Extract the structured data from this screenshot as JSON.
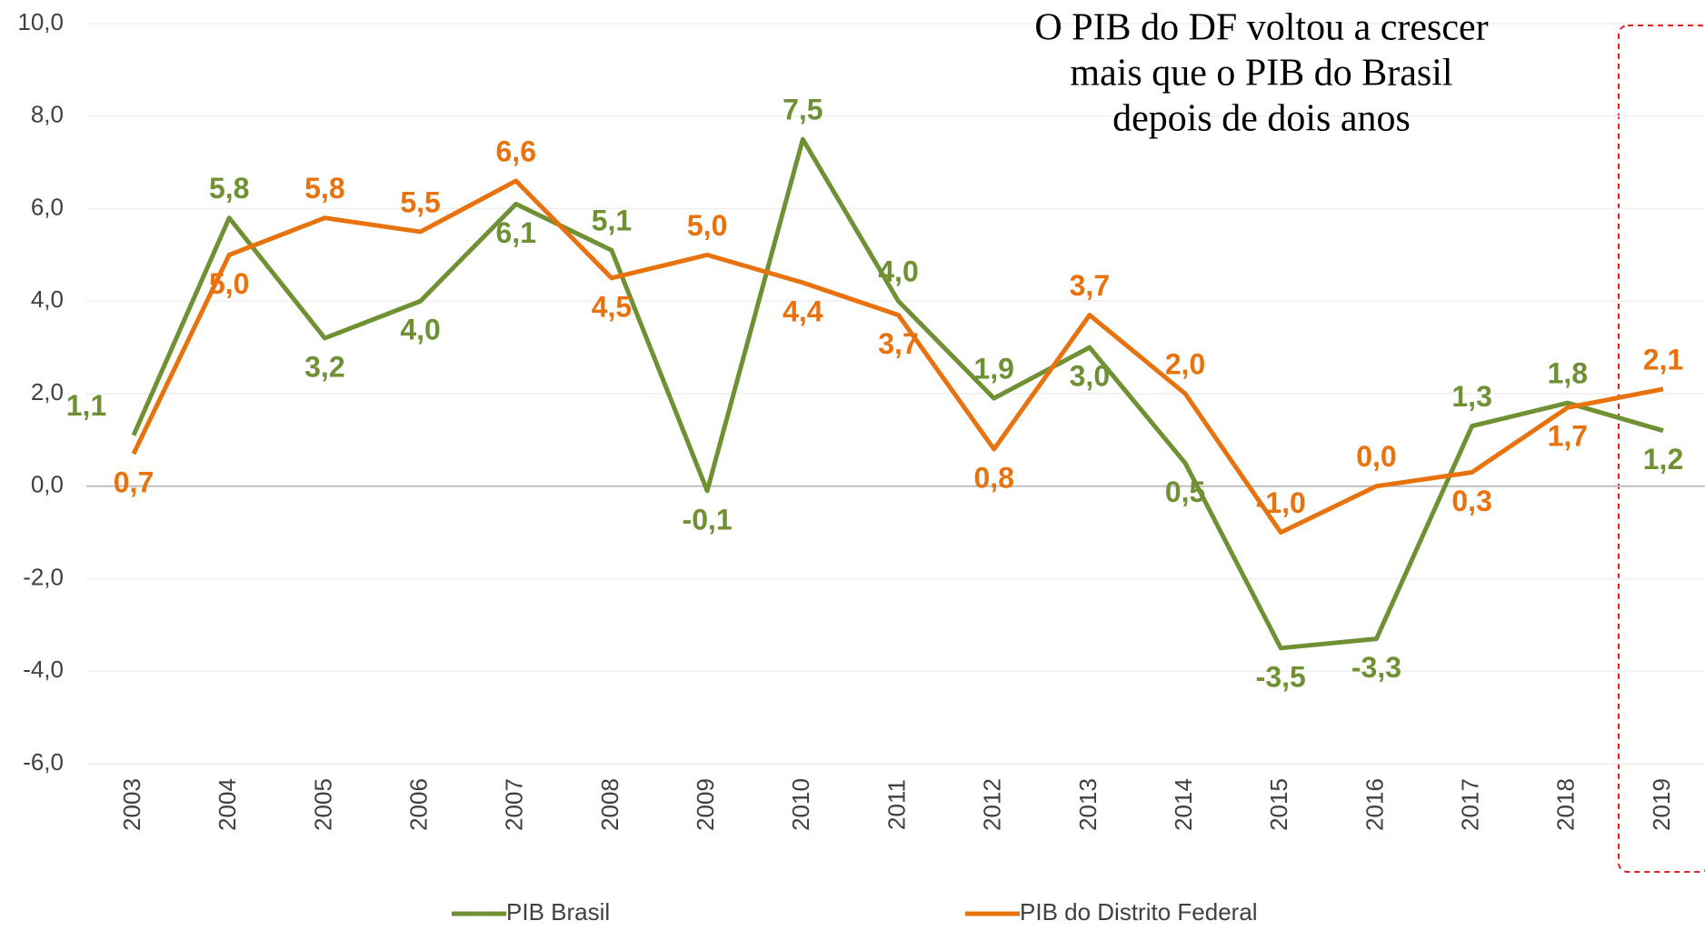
{
  "chart_data": {
    "type": "line",
    "title": [
      "O PIB do DF voltou a crescer",
      "mais que o PIB do Brasil",
      "depois de dois anos"
    ],
    "categories": [
      "2003",
      "2004",
      "2005",
      "2006",
      "2007",
      "2008",
      "2009",
      "2010",
      "2011",
      "2012",
      "2013",
      "2014",
      "2015",
      "2016",
      "2017",
      "2018",
      "2019"
    ],
    "series": [
      {
        "name": "PIB Brasil",
        "color": "#6f9134",
        "values": [
          1.1,
          5.8,
          3.2,
          4.0,
          6.1,
          5.1,
          -0.1,
          7.5,
          4.0,
          1.9,
          3.0,
          0.5,
          -3.5,
          -3.3,
          1.3,
          1.8,
          1.2
        ],
        "value_labels": [
          "1,1",
          "5,8",
          "3,2",
          "4,0",
          "6,1",
          "5,1",
          "-0,1",
          "7,5",
          "4,0",
          "1,9",
          "3,0",
          "0,5",
          "-3,5",
          "-3,3",
          "1,3",
          "1,8",
          "1,2"
        ]
      },
      {
        "name": "PIB do Distrito Federal",
        "color": "#e8730e",
        "values": [
          0.7,
          5.0,
          5.8,
          5.5,
          6.6,
          4.5,
          5.0,
          4.4,
          3.7,
          0.8,
          3.7,
          2.0,
          -1.0,
          0.0,
          0.3,
          1.7,
          2.1
        ],
        "value_labels": [
          "0,7",
          "5,0",
          "5,8",
          "5,5",
          "6,6",
          "4,5",
          "5,0",
          "4,4",
          "3,7",
          "0,8",
          "3,7",
          "2,0",
          "-1,0",
          "0,0",
          "0,3",
          "1,7",
          "2,1"
        ]
      }
    ],
    "ylim": [
      -6,
      10
    ],
    "yticks": [
      {
        "value": -6,
        "label": "-6,0"
      },
      {
        "value": -4,
        "label": "-4,0"
      },
      {
        "value": -2,
        "label": "-2,0"
      },
      {
        "value": 0,
        "label": "0,0"
      },
      {
        "value": 2,
        "label": "2,0"
      },
      {
        "value": 4,
        "label": "4,0"
      },
      {
        "value": 6,
        "label": "6,0"
      },
      {
        "value": 8,
        "label": "8,0"
      },
      {
        "value": 10,
        "label": "10,0"
      }
    ],
    "grid": true,
    "legend": "bottom"
  }
}
